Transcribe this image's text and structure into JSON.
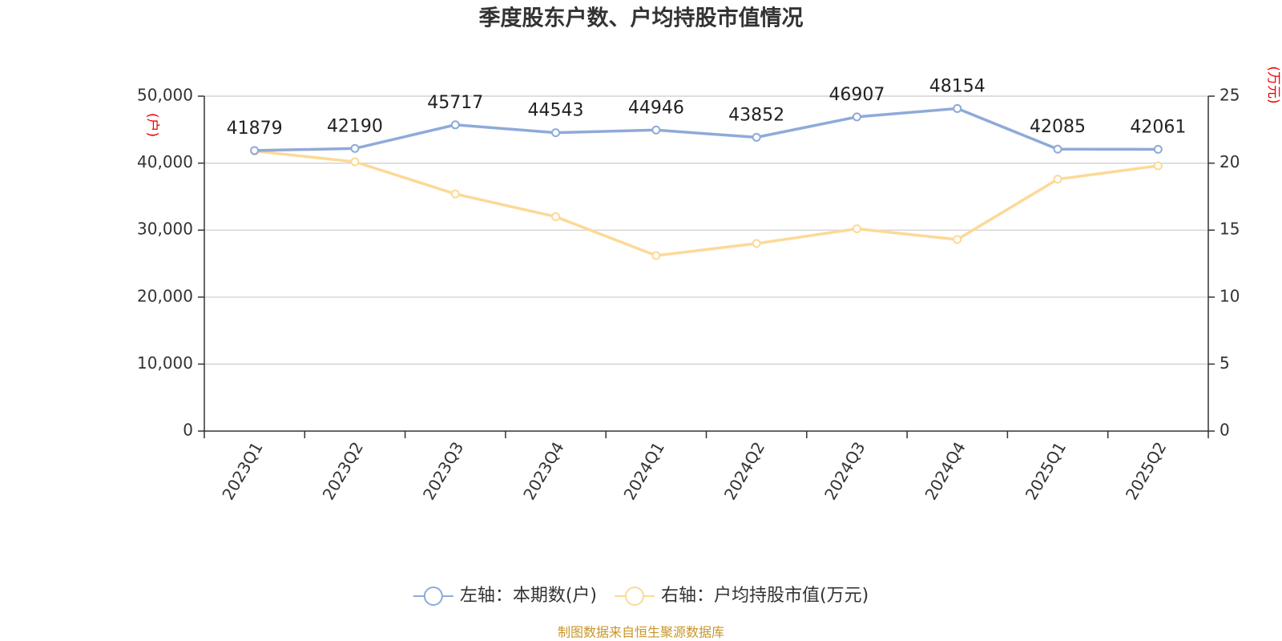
{
  "chart_data": {
    "type": "line",
    "title": "季度股东户数、户均持股市值情况",
    "categories": [
      "2023Q1",
      "2023Q2",
      "2023Q3",
      "2023Q4",
      "2024Q1",
      "2024Q2",
      "2024Q3",
      "2024Q4",
      "2025Q1",
      "2025Q2"
    ],
    "series": [
      {
        "name": "左轴：本期数(户)",
        "color": "#8eaad8",
        "axis": "y",
        "show_labels": true,
        "values": [
          41879,
          42190,
          45717,
          44543,
          44946,
          43852,
          46907,
          48154,
          42085,
          42061
        ]
      },
      {
        "name": "右轴：户均持股市值(万元)",
        "color": "#fcd997",
        "axis": "y2",
        "show_labels": false,
        "values": [
          20.9,
          20.1,
          17.7,
          16.0,
          13.1,
          14.0,
          15.1,
          14.3,
          18.8,
          19.8
        ]
      }
    ],
    "ylim": [
      0,
      50000
    ],
    "yticks": [
      0,
      {
        "value": 10000,
        "label": "10,000"
      },
      {
        "value": 20000,
        "label": "20,000"
      },
      {
        "value": 30000,
        "label": "30,000"
      },
      {
        "value": 40000,
        "label": "40,000"
      },
      {
        "value": 50000,
        "label": "50,000"
      }
    ],
    "y2lim": [
      0,
      25
    ],
    "y2ticks": [
      0,
      5,
      10,
      15,
      20,
      25
    ],
    "y_axis_label": "(户)",
    "y2_axis_label": "(万元)",
    "grid": true,
    "legend": "bottom",
    "source": "制图数据来自恒生聚源数据库"
  }
}
